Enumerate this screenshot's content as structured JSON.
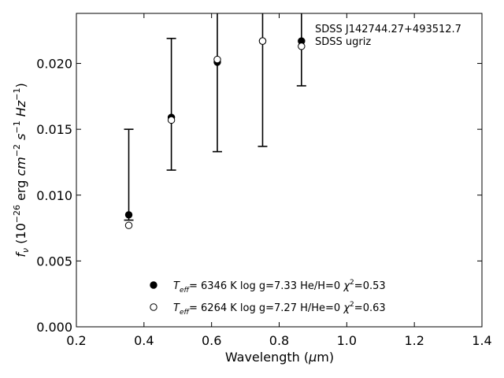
{
  "chart_data": {
    "type": "scatter",
    "title": "",
    "xlabel": "Wavelength (μm)",
    "ylabel": "f_ν (10^-26 erg cm^-2 s^-1 Hz^-1)",
    "xlim": [
      0.2,
      1.4
    ],
    "ylim": [
      0.0,
      0.0238
    ],
    "xticks": [
      0.2,
      0.4,
      0.6,
      0.8,
      1.0,
      1.2,
      1.4
    ],
    "xtick_labels": [
      "0.2",
      "0.4",
      "0.6",
      "0.8",
      "1.0",
      "1.2",
      "1.4"
    ],
    "yticks": [
      0.0,
      0.005,
      0.01,
      0.015,
      0.02
    ],
    "ytick_labels": [
      "0.000",
      "0.005",
      "0.010",
      "0.015",
      "0.020"
    ],
    "grid": false,
    "annotation_lines": [
      "SDSS J142744.27+493512.7",
      "SDSS ugriz"
    ],
    "observed": {
      "x": [
        0.355,
        0.481,
        0.617,
        0.751,
        0.866
      ],
      "y": [
        0.0077,
        0.0157,
        0.0203,
        0.0217,
        0.0213
      ],
      "yerr_low": [
        0.0081,
        0.0119,
        0.0133,
        0.0137,
        0.0183
      ],
      "yerr_high": [
        0.015,
        0.0219,
        0.026,
        0.026,
        0.026
      ]
    },
    "series": [
      {
        "marker": "filled-circle",
        "color": "#000000",
        "x": [
          0.355,
          0.481,
          0.617,
          0.751,
          0.866
        ],
        "y": [
          0.0085,
          0.0159,
          0.0201,
          0.0217,
          0.0217
        ]
      },
      {
        "marker": "open-circle",
        "color": "#000000",
        "x": [
          0.355,
          0.481,
          0.617,
          0.751,
          0.866
        ],
        "y": [
          0.0077,
          0.0157,
          0.0203,
          0.0217,
          0.0213
        ]
      }
    ],
    "legend": {
      "placement": "lower-center",
      "entries": [
        {
          "marker": "filled-circle",
          "teff": "6346",
          "logg": "7.33",
          "comp": "He/H=0",
          "chi2": "0.53"
        },
        {
          "marker": "open-circle",
          "teff": "6264",
          "logg": "7.27",
          "comp": "H/He=0",
          "chi2": "0.63"
        }
      ]
    }
  }
}
